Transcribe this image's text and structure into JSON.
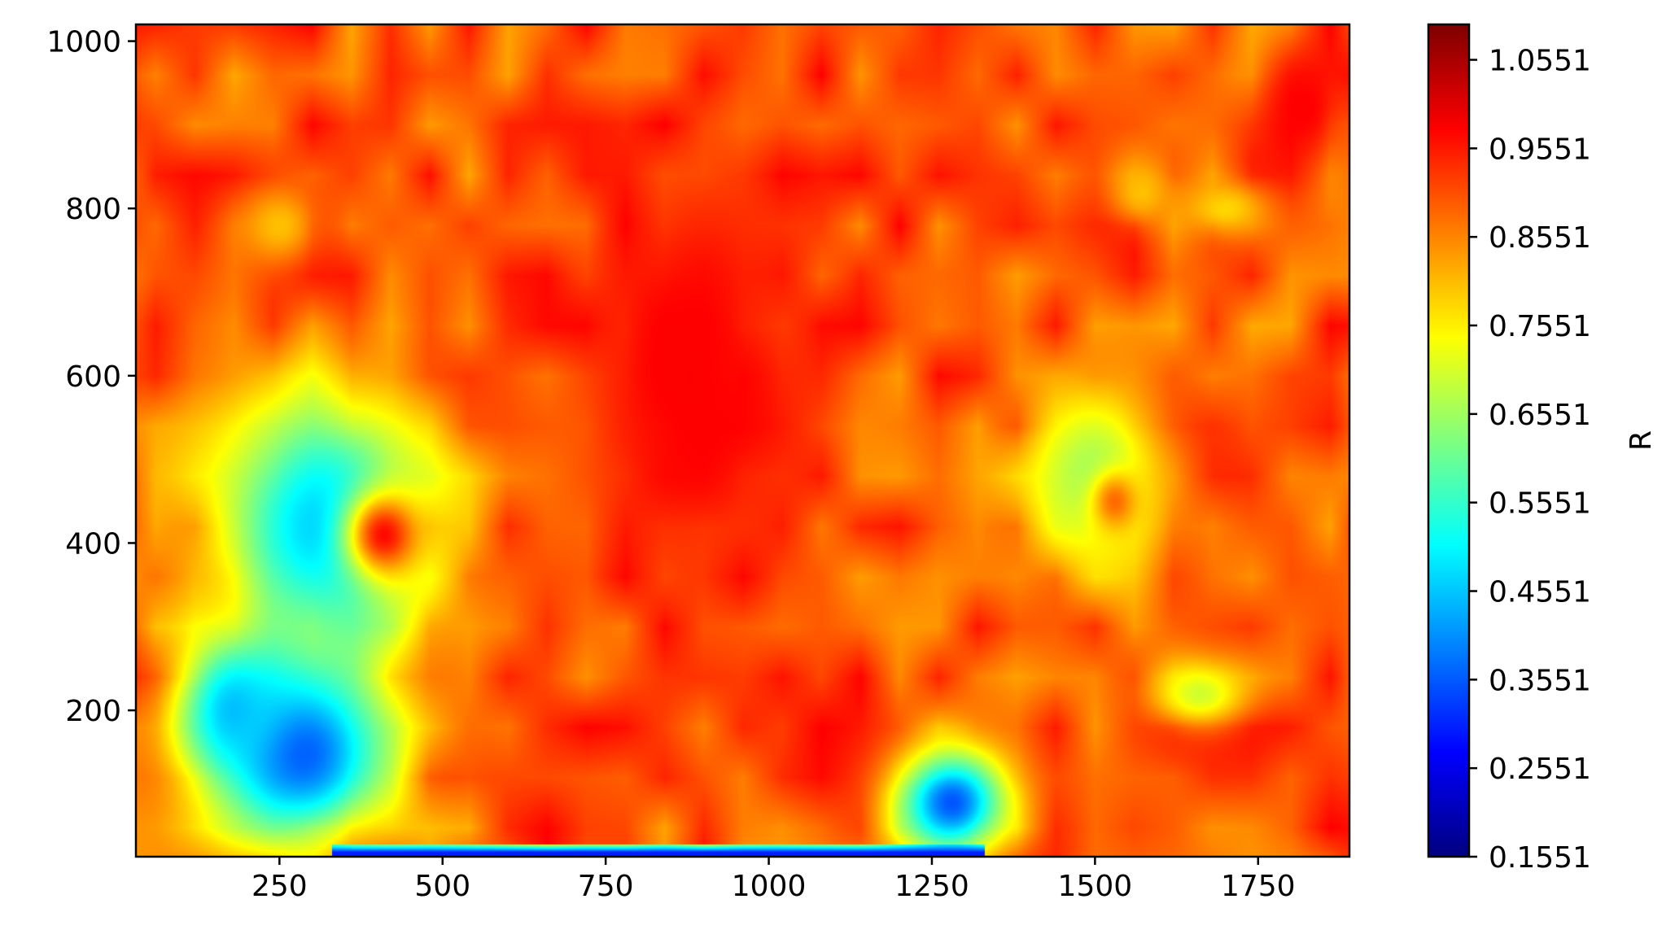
{
  "chart_data": {
    "type": "heatmap",
    "title": "",
    "xlabel": "",
    "ylabel": "",
    "xlim": [
      30,
      1890
    ],
    "ylim": [
      25,
      1020
    ],
    "x_ticks": [
      250,
      500,
      750,
      1000,
      1250,
      1500,
      1750
    ],
    "y_ticks": [
      200,
      400,
      600,
      800,
      1000
    ],
    "colormap": "jet",
    "colorbar": {
      "label": "R",
      "range": [
        0.1551,
        1.0951
      ],
      "ticks": [
        "0.1551",
        "0.2551",
        "0.3551",
        "0.4551",
        "0.5551",
        "0.6551",
        "0.7551",
        "0.8551",
        "0.9551",
        "1.0551"
      ]
    },
    "background_value": 0.9,
    "features": [
      {
        "x": 320,
        "y": 420,
        "rx": 250,
        "ry": 230,
        "value": 0.45
      },
      {
        "x": 410,
        "y": 410,
        "rx": 90,
        "ry": 80,
        "value": 0.97
      },
      {
        "x": 280,
        "y": 150,
        "rx": 210,
        "ry": 160,
        "value": 0.35
      },
      {
        "x": 180,
        "y": 200,
        "rx": 120,
        "ry": 120,
        "value": 0.45
      },
      {
        "x": 1500,
        "y": 480,
        "rx": 170,
        "ry": 170,
        "value": 0.65
      },
      {
        "x": 1530,
        "y": 450,
        "rx": 55,
        "ry": 55,
        "value": 0.88
      },
      {
        "x": 1280,
        "y": 90,
        "rx": 120,
        "ry": 90,
        "value": 0.35
      },
      {
        "x": 1660,
        "y": 220,
        "rx": 110,
        "ry": 60,
        "value": 0.7
      },
      {
        "x": 880,
        "y": 600,
        "rx": 280,
        "ry": 420,
        "value": 0.98
      },
      {
        "x": 1820,
        "y": 920,
        "rx": 90,
        "ry": 100,
        "value": 0.98
      },
      {
        "x": 250,
        "y": 780,
        "rx": 90,
        "ry": 70,
        "value": 0.8
      },
      {
        "x": 1700,
        "y": 800,
        "rx": 100,
        "ry": 50,
        "value": 0.78
      },
      {
        "x": 1570,
        "y": 820,
        "rx": 70,
        "ry": 60,
        "value": 0.8
      }
    ],
    "bottom_band": {
      "x_from": 330,
      "x_to": 1330,
      "y_to": 40,
      "value": 0.3
    },
    "grid": false,
    "legend": "none"
  }
}
